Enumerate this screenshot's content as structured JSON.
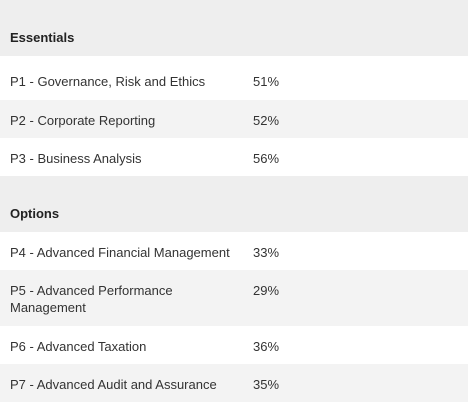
{
  "sections": [
    {
      "title": "Essentials",
      "rows": [
        {
          "paper": "P1  - Governance, Risk and Ethics",
          "rate": "51%"
        },
        {
          "paper": "P2 - Corporate Reporting",
          "rate": "52%"
        },
        {
          "paper": "P3 - Business Analysis",
          "rate": "56%"
        }
      ]
    },
    {
      "title": "Options",
      "rows": [
        {
          "paper": "P4 - Advanced Financial Management",
          "rate": "33%"
        },
        {
          "paper": "P5 - Advanced Performance Management",
          "rate": "29%"
        },
        {
          "paper": "P6 - Advanced Taxation",
          "rate": "36%"
        },
        {
          "paper": "P7 - Advanced Audit and Assurance",
          "rate": "35%"
        }
      ]
    }
  ]
}
